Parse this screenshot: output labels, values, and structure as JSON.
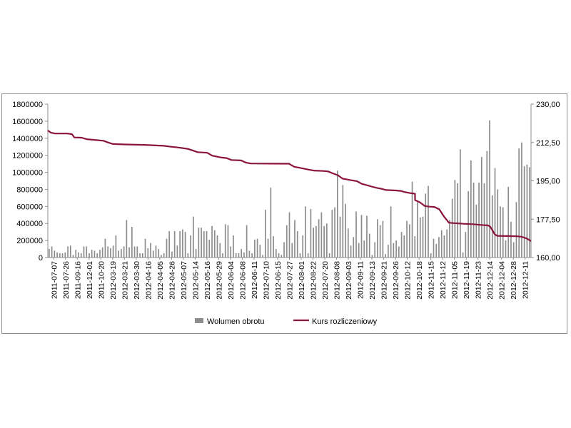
{
  "chart_data": {
    "type": "bar+line",
    "title": "",
    "legend_position": "bottom",
    "grid": false,
    "colors": {
      "bars": "#8c8c8c",
      "line": "#8b1538",
      "axis": "#8c8c8c"
    },
    "y_left": {
      "range": [
        0,
        1800000
      ],
      "ticks": [
        "0",
        "200000",
        "400000",
        "600000",
        "800000",
        "1000000",
        "1200000",
        "1400000",
        "1600000",
        "1800000"
      ]
    },
    "y_right": {
      "range": [
        160,
        230
      ],
      "ticks": [
        "160,00",
        "177,50",
        "195,00",
        "212,50",
        "230,00"
      ]
    },
    "x_tick_labels": [
      "2011-07-07",
      "2011-07-26",
      "2011-09-16",
      "2011-12-01",
      "2011-10-20",
      "2012-03-19",
      "2012-03-21",
      "2012-03-30",
      "2012-04-16",
      "2012-04-05",
      "2012-04-26",
      "2012-05-07",
      "2012-05-14",
      "2012-05-16",
      "2012-05-29",
      "2012-06-04",
      "2012-06-08",
      "2012-06-11",
      "2012-07-10",
      "2012-06-15",
      "2012-07-27",
      "2012-08-01",
      "2012-08-22",
      "2012-07-20",
      "2012-08-08",
      "2012-09-03",
      "2012-09-11",
      "2012-09-13",
      "2012-09-21",
      "2012-09-26",
      "2012-10-12",
      "2012-10-18",
      "2012-11-15",
      "2012-11-12",
      "2012-11-05",
      "2012-11-19",
      "2012-11-23",
      "2012-12-14",
      "2012-12-04",
      "2012-12-28",
      "2012-12-11"
    ],
    "series": [
      {
        "name": "Wolumen obrotu",
        "kind": "bar",
        "axis": "left",
        "values": [
          100000,
          130000,
          80000,
          60000,
          50000,
          50000,
          60000,
          130000,
          140000,
          30000,
          90000,
          60000,
          50000,
          130000,
          130000,
          50000,
          90000,
          80000,
          50000,
          90000,
          120000,
          220000,
          130000,
          110000,
          140000,
          260000,
          80000,
          100000,
          130000,
          440000,
          120000,
          360000,
          130000,
          130000,
          50000,
          50000,
          220000,
          110000,
          170000,
          80000,
          140000,
          100000,
          30000,
          50000,
          220000,
          310000,
          70000,
          310000,
          140000,
          310000,
          330000,
          300000,
          50000,
          260000,
          480000,
          100000,
          350000,
          350000,
          310000,
          310000,
          210000,
          370000,
          320000,
          260000,
          170000,
          50000,
          390000,
          380000,
          130000,
          260000,
          50000,
          50000,
          100000,
          60000,
          380000,
          80000,
          50000,
          210000,
          220000,
          150000,
          30000,
          560000,
          220000,
          820000,
          250000,
          100000,
          50000,
          30000,
          180000,
          380000,
          530000,
          170000,
          440000,
          310000,
          50000,
          260000,
          600000,
          50000,
          570000,
          350000,
          370000,
          450000,
          530000,
          370000,
          400000,
          50000,
          560000,
          590000,
          1020000,
          480000,
          850000,
          630000,
          340000,
          140000,
          240000,
          540000,
          170000,
          500000,
          200000,
          490000,
          280000,
          30000,
          180000,
          450000,
          380000,
          430000,
          40000,
          150000,
          600000,
          170000,
          200000,
          130000,
          300000,
          260000,
          430000,
          390000,
          890000,
          250000,
          650000,
          470000,
          480000,
          750000,
          840000,
          50000,
          220000,
          160000,
          240000,
          320000,
          260000,
          330000,
          440000,
          690000,
          910000,
          870000,
          1270000,
          60000,
          300000,
          780000,
          1140000,
          880000,
          620000,
          880000,
          1180000,
          870000,
          1250000,
          1610000,
          730000,
          1050000,
          800000,
          600000,
          590000,
          200000,
          830000,
          420000,
          180000,
          650000,
          1280000,
          1350000,
          1070000,
          1090000,
          1060000
        ]
      },
      {
        "name": "Kurs rozliczeniowy",
        "kind": "line",
        "axis": "right",
        "points": [
          [
            0,
            218
          ],
          [
            0.006,
            217
          ],
          [
            0.015,
            216.6
          ],
          [
            0.04,
            216.6
          ],
          [
            0.05,
            216.3
          ],
          [
            0.055,
            214.8
          ],
          [
            0.07,
            214.7
          ],
          [
            0.08,
            214
          ],
          [
            0.1,
            213.6
          ],
          [
            0.115,
            213.3
          ],
          [
            0.125,
            212.5
          ],
          [
            0.135,
            211.8
          ],
          [
            0.16,
            211.6
          ],
          [
            0.2,
            211.4
          ],
          [
            0.24,
            211
          ],
          [
            0.25,
            210.7
          ],
          [
            0.27,
            210.2
          ],
          [
            0.29,
            209.6
          ],
          [
            0.31,
            208.1
          ],
          [
            0.33,
            207.8
          ],
          [
            0.34,
            206.5
          ],
          [
            0.36,
            205.6
          ],
          [
            0.37,
            205.4
          ],
          [
            0.38,
            204.5
          ],
          [
            0.4,
            204.3
          ],
          [
            0.41,
            203.3
          ],
          [
            0.42,
            202.9
          ],
          [
            0.5,
            202.8
          ],
          [
            0.5,
            202.7
          ],
          [
            0.51,
            201.4
          ],
          [
            0.52,
            201
          ],
          [
            0.54,
            200.1
          ],
          [
            0.55,
            199.7
          ],
          [
            0.57,
            199.5
          ],
          [
            0.58,
            199.3
          ],
          [
            0.59,
            198.4
          ],
          [
            0.6,
            197.6
          ],
          [
            0.61,
            196
          ],
          [
            0.62,
            195.6
          ],
          [
            0.64,
            194.8
          ],
          [
            0.65,
            193.6
          ],
          [
            0.66,
            193
          ],
          [
            0.67,
            192.4
          ],
          [
            0.68,
            191.8
          ],
          [
            0.69,
            191.4
          ],
          [
            0.7,
            190.8
          ],
          [
            0.72,
            190.6
          ],
          [
            0.73,
            190.4
          ],
          [
            0.74,
            189.8
          ],
          [
            0.75,
            189.4
          ],
          [
            0.76,
            189.1
          ],
          [
            0.76,
            186.2
          ],
          [
            0.77,
            185.2
          ],
          [
            0.78,
            183.5
          ],
          [
            0.79,
            183.2
          ],
          [
            0.8,
            183.1
          ],
          [
            0.81,
            182
          ],
          [
            0.82,
            178.7
          ],
          [
            0.83,
            175.9
          ],
          [
            0.84,
            175.7
          ],
          [
            0.85,
            175.6
          ],
          [
            0.86,
            175.4
          ],
          [
            0.88,
            175.2
          ],
          [
            0.9,
            174.8
          ],
          [
            0.91,
            174.7
          ],
          [
            0.915,
            174.2
          ],
          [
            0.92,
            172.5
          ],
          [
            0.925,
            170.6
          ],
          [
            0.93,
            169.9
          ],
          [
            0.95,
            169.8
          ],
          [
            0.97,
            169.7
          ],
          [
            0.98,
            169.5
          ],
          [
            0.99,
            168.8
          ],
          [
            0.995,
            168.2
          ],
          [
            1,
            167.5
          ]
        ]
      }
    ]
  }
}
